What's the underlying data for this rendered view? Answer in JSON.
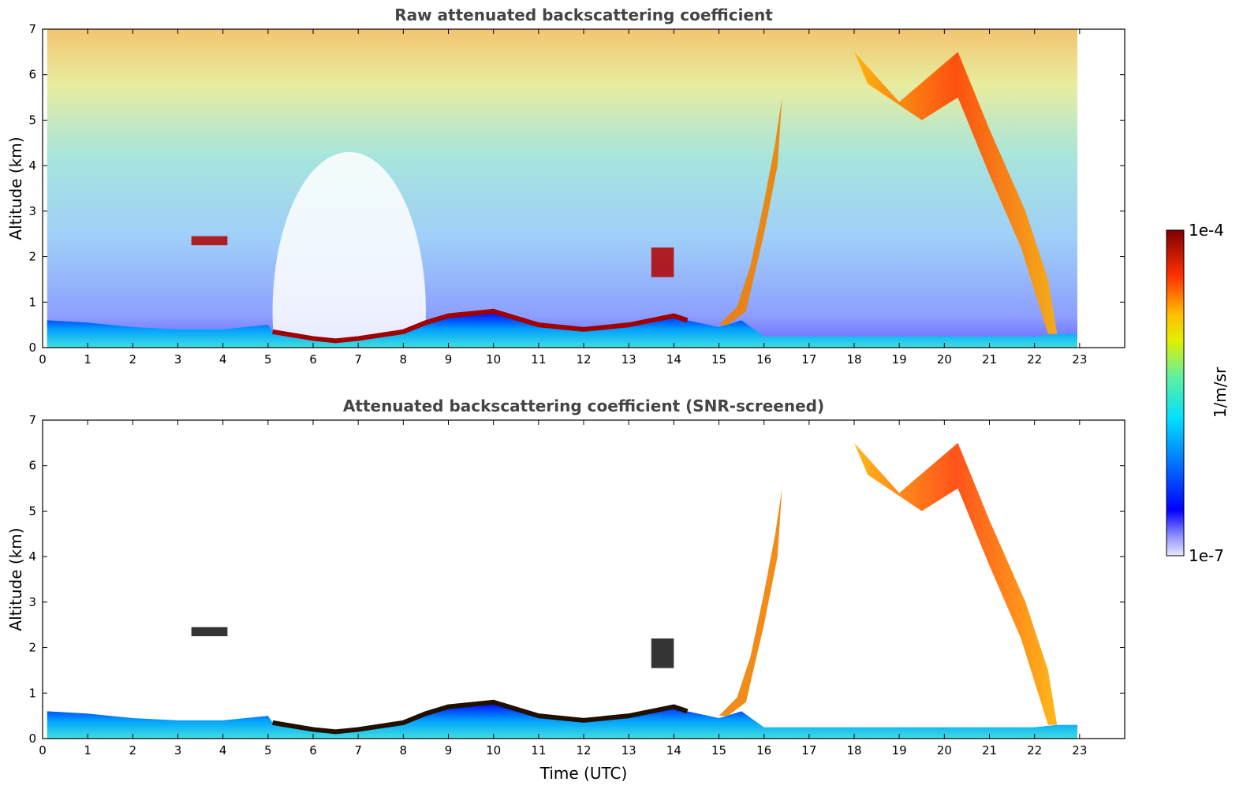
{
  "chart_data": [
    {
      "type": "heatmap",
      "title": "Raw attenuated backscattering coefficient",
      "xlabel": "",
      "ylabel": "Altitude (km)",
      "xlim": [
        0,
        24
      ],
      "ylim": [
        0,
        7
      ],
      "x_ticks": [
        "0",
        "1",
        "2",
        "3",
        "4",
        "5",
        "6",
        "7",
        "8",
        "9",
        "10",
        "11",
        "12",
        "13",
        "14",
        "15",
        "16",
        "17",
        "18",
        "19",
        "20",
        "21",
        "22",
        "23"
      ],
      "y_ticks": [
        "0",
        "1",
        "2",
        "3",
        "4",
        "5",
        "6",
        "7"
      ],
      "data_extent_hours": [
        0.1,
        22.95
      ],
      "features": [
        {
          "name": "boundary layer",
          "t": [
            0.1,
            1,
            2,
            3,
            4,
            5,
            5.1,
            6,
            6.5,
            7,
            8,
            8.5,
            9,
            10,
            11,
            12,
            13,
            14,
            14.3,
            15,
            15.5,
            16,
            17,
            18,
            19,
            20,
            21,
            22,
            22.5,
            22.95
          ],
          "top_km": [
            0.6,
            0.55,
            0.45,
            0.4,
            0.4,
            0.5,
            0.35,
            0.2,
            0.15,
            0.2,
            0.35,
            0.55,
            0.7,
            0.8,
            0.5,
            0.4,
            0.5,
            0.7,
            0.6,
            0.45,
            0.6,
            0.25,
            0.25,
            0.25,
            0.25,
            0.25,
            0.25,
            0.25,
            0.3,
            0.3
          ]
        },
        {
          "name": "cloud",
          "t0": 3.3,
          "t1": 4.1,
          "z0_km": 2.25,
          "z1_km": 2.45
        },
        {
          "name": "cloud",
          "t0": 13.5,
          "t1": 14.0,
          "z0_km": 1.55,
          "z1_km": 2.2
        },
        {
          "name": "rising cloud",
          "t0": 15.2,
          "t1": 16.4,
          "z0_km": 0.4,
          "z1_km": 5.5
        },
        {
          "name": "cirrus",
          "t0": 18.0,
          "t1": 22.5,
          "z0_km": 0.3,
          "z1_km": 6.5
        }
      ]
    },
    {
      "type": "heatmap",
      "title": "Attenuated backscattering coefficient (SNR-screened)",
      "xlabel": "Time (UTC)",
      "ylabel": "Altitude (km)",
      "xlim": [
        0,
        24
      ],
      "ylim": [
        0,
        7
      ],
      "x_ticks": [
        "0",
        "1",
        "2",
        "3",
        "4",
        "5",
        "6",
        "7",
        "8",
        "9",
        "10",
        "11",
        "12",
        "13",
        "14",
        "15",
        "16",
        "17",
        "18",
        "19",
        "20",
        "21",
        "22",
        "23"
      ],
      "y_ticks": [
        "0",
        "1",
        "2",
        "3",
        "4",
        "5",
        "6",
        "7"
      ],
      "data_extent_hours": [
        0.1,
        22.95
      ]
    }
  ],
  "colorbar": {
    "label": "1/m/sr",
    "max_label": "1e-4",
    "min_label": "1e-7",
    "scale": "log",
    "range": [
      1e-07,
      0.0001
    ],
    "colormap": "jet",
    "colors": [
      "#e6e6f5",
      "#0000ff",
      "#00c8ff",
      "#40e0a0",
      "#ffff00",
      "#ff8000",
      "#ff0000",
      "#800000"
    ]
  }
}
